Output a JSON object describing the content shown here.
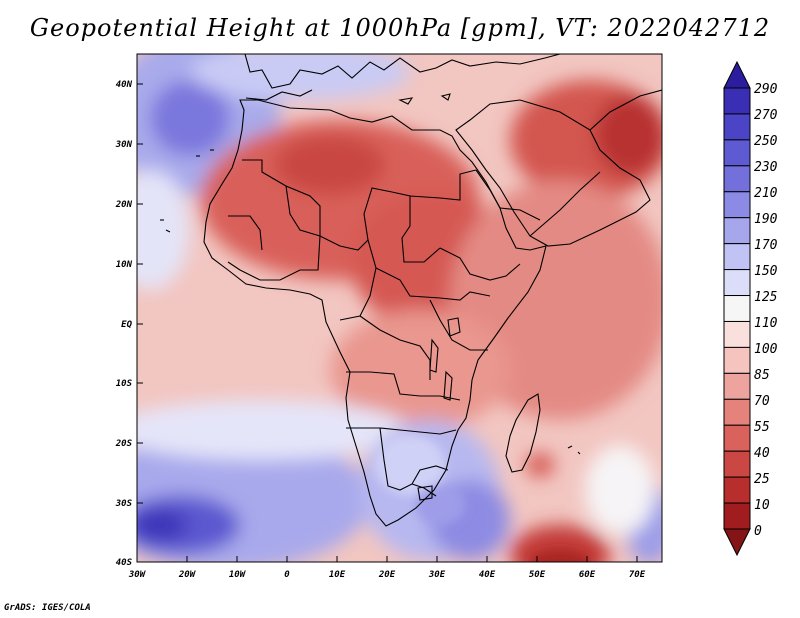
{
  "title": "Geopotential Height at 1000hPa [gpm], VT: 2022042712",
  "credit": "GrADS: IGES/COLA",
  "map": {
    "lat_labels": [
      "40N",
      "30N",
      "20N",
      "10N",
      "EQ",
      "10S",
      "20S",
      "30S",
      "40S"
    ],
    "lon_labels": [
      "30W",
      "20W",
      "10W",
      "0",
      "10E",
      "20E",
      "30E",
      "40E",
      "50E",
      "60E",
      "70E"
    ],
    "lat_range": [
      -40,
      45
    ],
    "lon_range": [
      -30,
      75
    ]
  },
  "colorbar": {
    "levels": [
      "290",
      "270",
      "250",
      "230",
      "210",
      "190",
      "170",
      "150",
      "125",
      "110",
      "100",
      "85",
      "70",
      "55",
      "40",
      "25",
      "10",
      "0"
    ],
    "colors": [
      "#2b1d9e",
      "#3a2fb4",
      "#4b44c6",
      "#5d5ad2",
      "#7370dc",
      "#8b8ae4",
      "#a5a6ec",
      "#c1c3f4",
      "#dcdef9",
      "#f6f6f6",
      "#fae0dd",
      "#f5c4bf",
      "#eea49e",
      "#e5827c",
      "#d9625c",
      "#cb4743",
      "#b82e2c",
      "#a01c1e",
      "#851416"
    ]
  }
}
